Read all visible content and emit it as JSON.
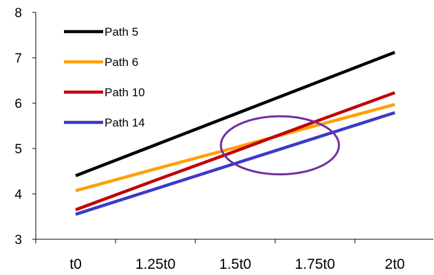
{
  "chart_data": {
    "type": "line",
    "categories": [
      "t0",
      "1.25t0",
      "1.5t0",
      "1.75t0",
      "2t0"
    ],
    "x": [
      1.0,
      1.25,
      1.5,
      1.75,
      2.0
    ],
    "ylim": [
      3,
      8
    ],
    "yticks": [
      "3",
      "4",
      "5",
      "6",
      "7",
      "8"
    ],
    "grid": false,
    "legend": "top-left",
    "series": [
      {
        "name": "Path 5",
        "color": "#000000",
        "values": [
          4.4,
          5.08,
          5.76,
          6.44,
          7.12
        ]
      },
      {
        "name": "Path 6",
        "color": "#FFA000",
        "values": [
          4.07,
          4.55,
          5.02,
          5.5,
          5.97
        ]
      },
      {
        "name": "Path 10",
        "color": "#C00000",
        "values": [
          3.65,
          4.3,
          4.94,
          5.59,
          6.23
        ]
      },
      {
        "name": "Path 14",
        "color": "#3A3AC8",
        "values": [
          3.55,
          4.11,
          4.67,
          5.23,
          5.79
        ]
      }
    ],
    "annotations": [
      {
        "type": "ellipse",
        "color": "#7030A0",
        "cx": 1.64,
        "cy": 5.07,
        "rx": 0.185,
        "ry": 0.64
      }
    ]
  }
}
